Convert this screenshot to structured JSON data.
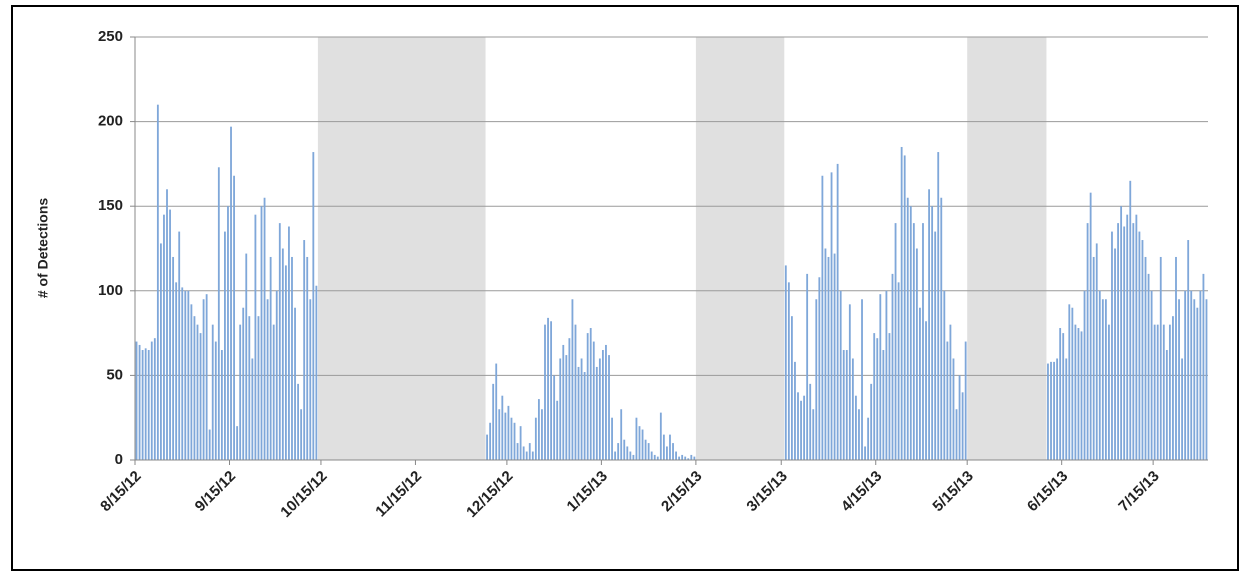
{
  "chart_data": {
    "type": "bar",
    "y_label": "# of Detections",
    "ylim": [
      0,
      250
    ],
    "yticks": [
      0,
      50,
      100,
      150,
      200,
      250
    ],
    "grid": true,
    "color": "#7fa7d9",
    "shade_color": "#e0e0e0",
    "shaded_ranges": [
      [
        60,
        114
      ],
      [
        184,
        212
      ],
      [
        273,
        298
      ]
    ],
    "categories": [
      "8/15/12",
      null,
      null,
      null,
      null,
      null,
      null,
      null,
      null,
      null,
      null,
      null,
      null,
      null,
      null,
      null,
      null,
      null,
      null,
      null,
      null,
      null,
      null,
      null,
      null,
      null,
      null,
      null,
      null,
      null,
      null,
      "9/15/12",
      null,
      null,
      null,
      null,
      null,
      null,
      null,
      null,
      null,
      null,
      null,
      null,
      null,
      null,
      null,
      null,
      null,
      null,
      null,
      null,
      null,
      null,
      null,
      null,
      null,
      null,
      null,
      null,
      null,
      "10/15/12",
      null,
      null,
      null,
      null,
      null,
      null,
      null,
      null,
      null,
      null,
      null,
      null,
      null,
      null,
      null,
      null,
      null,
      null,
      null,
      null,
      null,
      null,
      null,
      null,
      null,
      null,
      null,
      null,
      null,
      null,
      "11/15/12",
      null,
      null,
      null,
      null,
      null,
      null,
      null,
      null,
      null,
      null,
      null,
      null,
      null,
      null,
      null,
      null,
      null,
      null,
      null,
      null,
      null,
      null,
      null,
      null,
      null,
      null,
      null,
      null,
      null,
      "12/15/12",
      null,
      null,
      null,
      null,
      null,
      null,
      null,
      null,
      null,
      null,
      null,
      null,
      null,
      null,
      null,
      null,
      null,
      null,
      null,
      null,
      null,
      null,
      null,
      null,
      null,
      null,
      null,
      null,
      null,
      null,
      "1/15/13",
      null,
      null,
      null,
      null,
      null,
      null,
      null,
      null,
      null,
      null,
      null,
      null,
      null,
      null,
      null,
      null,
      null,
      null,
      null,
      null,
      null,
      null,
      null,
      null,
      null,
      null,
      null,
      null,
      null,
      null,
      "2/15/13",
      null,
      null,
      null,
      null,
      null,
      null,
      null,
      null,
      null,
      null,
      null,
      null,
      null,
      null,
      null,
      null,
      null,
      null,
      null,
      null,
      null,
      null,
      null,
      null,
      null,
      null,
      null,
      "3/15/13",
      null,
      null,
      null,
      null,
      null,
      null,
      null,
      null,
      null,
      null,
      null,
      null,
      null,
      null,
      null,
      null,
      null,
      null,
      null,
      null,
      null,
      null,
      null,
      null,
      null,
      null,
      null,
      null,
      null,
      null,
      "4/15/13",
      null,
      null,
      null,
      null,
      null,
      null,
      null,
      null,
      null,
      null,
      null,
      null,
      null,
      null,
      null,
      null,
      null,
      null,
      null,
      null,
      null,
      null,
      null,
      null,
      null,
      null,
      null,
      null,
      null,
      "5/15/13",
      null,
      null,
      null,
      null,
      null,
      null,
      null,
      null,
      null,
      null,
      null,
      null,
      null,
      null,
      null,
      null,
      null,
      null,
      null,
      null,
      null,
      null,
      null,
      null,
      null,
      null,
      null,
      null,
      null,
      null,
      "6/15/13",
      null,
      null,
      null,
      null,
      null,
      null,
      null,
      null,
      null,
      null,
      null,
      null,
      null,
      null,
      null,
      null,
      null,
      null,
      null,
      null,
      null,
      null,
      null,
      null,
      null,
      null,
      null,
      null,
      null,
      "7/15/13",
      null,
      null,
      null,
      null,
      null,
      null,
      null,
      null,
      null,
      null,
      null,
      null,
      null,
      null,
      null,
      null,
      null
    ],
    "values": [
      70,
      68,
      65,
      66,
      65,
      70,
      72,
      210,
      128,
      145,
      160,
      148,
      120,
      105,
      135,
      102,
      100,
      100,
      92,
      85,
      80,
      75,
      95,
      98,
      18,
      80,
      70,
      173,
      65,
      135,
      150,
      197,
      168,
      20,
      80,
      90,
      122,
      85,
      60,
      145,
      85,
      150,
      155,
      95,
      120,
      80,
      100,
      140,
      125,
      115,
      138,
      120,
      90,
      45,
      30,
      130,
      120,
      95,
      182,
      103,
      null,
      null,
      null,
      null,
      null,
      null,
      null,
      null,
      null,
      null,
      null,
      null,
      null,
      null,
      null,
      null,
      null,
      null,
      null,
      null,
      null,
      null,
      null,
      null,
      null,
      null,
      null,
      null,
      null,
      null,
      null,
      null,
      null,
      null,
      null,
      null,
      null,
      null,
      null,
      null,
      null,
      null,
      null,
      null,
      null,
      null,
      null,
      null,
      null,
      null,
      null,
      null,
      null,
      null,
      null,
      15,
      22,
      45,
      57,
      30,
      38,
      28,
      32,
      25,
      22,
      10,
      20,
      8,
      5,
      10,
      5,
      25,
      36,
      30,
      80,
      84,
      82,
      50,
      35,
      60,
      68,
      62,
      72,
      95,
      80,
      55,
      60,
      52,
      75,
      78,
      70,
      55,
      60,
      65,
      68,
      62,
      25,
      5,
      10,
      30,
      12,
      8,
      5,
      3,
      25,
      20,
      18,
      12,
      10,
      5,
      3,
      2,
      28,
      15,
      8,
      15,
      10,
      5,
      2,
      3,
      2,
      1,
      3,
      2,
      null,
      null,
      null,
      null,
      null,
      null,
      null,
      null,
      null,
      null,
      null,
      null,
      null,
      null,
      null,
      null,
      null,
      null,
      null,
      null,
      null,
      null,
      null,
      null,
      null,
      null,
      null,
      null,
      null,
      115,
      105,
      85,
      58,
      40,
      35,
      38,
      110,
      45,
      30,
      95,
      108,
      168,
      125,
      120,
      170,
      122,
      175,
      100,
      65,
      65,
      92,
      60,
      38,
      30,
      95,
      8,
      25,
      45,
      75,
      72,
      98,
      65,
      100,
      75,
      110,
      140,
      105,
      185,
      180,
      155,
      150,
      140,
      125,
      90,
      140,
      82,
      160,
      150,
      135,
      182,
      155,
      100,
      70,
      80,
      60,
      30,
      50,
      40,
      70,
      null,
      null,
      null,
      null,
      null,
      null,
      null,
      null,
      null,
      null,
      null,
      null,
      null,
      null,
      null,
      null,
      null,
      null,
      null,
      null,
      null,
      null,
      null,
      null,
      null,
      null,
      57,
      58,
      58,
      60,
      78,
      75,
      60,
      92,
      90,
      80,
      78,
      76,
      100,
      140,
      158,
      120,
      128,
      100,
      95,
      95,
      80,
      135,
      125,
      140,
      150,
      138,
      145,
      165,
      140,
      145,
      135,
      130,
      120,
      110,
      100,
      80,
      80,
      120,
      80,
      65,
      80,
      85,
      120,
      95,
      60,
      100,
      130,
      100,
      95,
      90,
      100,
      110,
      95
    ]
  }
}
